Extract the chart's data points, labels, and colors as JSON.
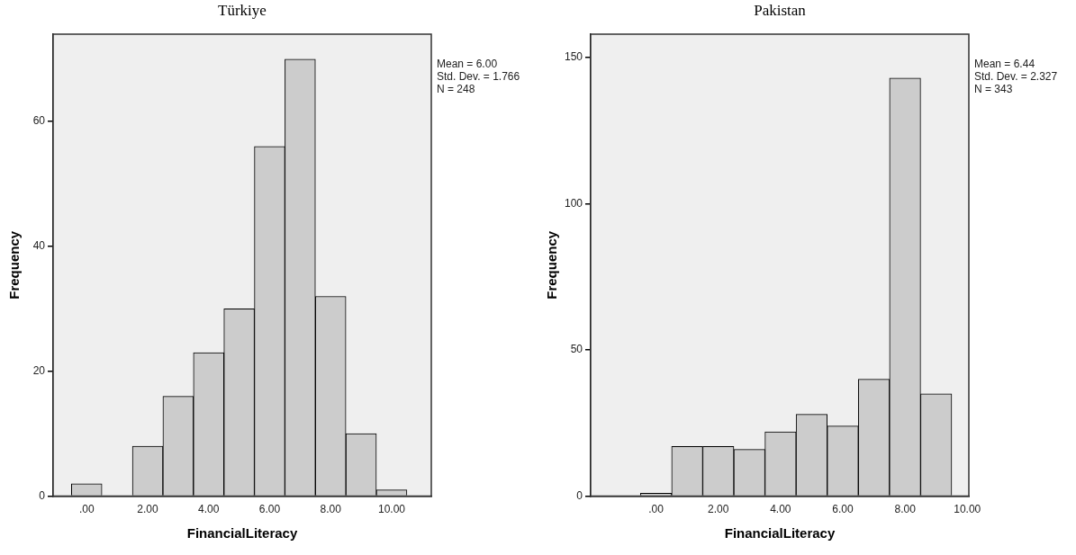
{
  "chart_data": [
    {
      "type": "histogram",
      "title": "Türkiye",
      "xlabel": "FinancialLiteracy",
      "ylabel": "Frequency",
      "color": "#cccccc",
      "grid": false,
      "legend": false,
      "bins": [
        -0.5,
        0.5,
        1.5,
        2.5,
        3.5,
        4.5,
        5.5,
        6.5,
        7.5,
        8.5,
        9.5,
        10.5
      ],
      "values": [
        2,
        0,
        8,
        16,
        23,
        30,
        56,
        70,
        32,
        10,
        1
      ],
      "xlim": [
        -1.1,
        11.3
      ],
      "ylim": [
        0,
        74
      ],
      "xticks": [
        {
          "value": 0,
          "label": ".00"
        },
        {
          "value": 2,
          "label": "2.00"
        },
        {
          "value": 4,
          "label": "4.00"
        },
        {
          "value": 6,
          "label": "6.00"
        },
        {
          "value": 8,
          "label": "8.00"
        },
        {
          "value": 10,
          "label": "10.00"
        }
      ],
      "yticks": [
        0,
        20,
        40,
        60
      ],
      "annotations": [
        "Mean = 6.00",
        "Std. Dev. = 1.766",
        "N = 248"
      ]
    },
    {
      "type": "histogram",
      "title": "Pakistan",
      "xlabel": "FinancialLiteracy",
      "ylabel": "Frequency",
      "color": "#cccccc",
      "grid": false,
      "legend": false,
      "bins": [
        -0.5,
        0.5,
        1.5,
        2.5,
        3.5,
        4.5,
        5.5,
        6.5,
        7.5,
        8.5,
        9.5
      ],
      "values": [
        1,
        17,
        17,
        16,
        22,
        28,
        24,
        40,
        143,
        35
      ],
      "xlim": [
        -2.1,
        10.05
      ],
      "ylim": [
        0,
        158
      ],
      "xticks": [
        {
          "value": 0,
          "label": ".00"
        },
        {
          "value": 2,
          "label": "2.00"
        },
        {
          "value": 4,
          "label": "4.00"
        },
        {
          "value": 6,
          "label": "6.00"
        },
        {
          "value": 8,
          "label": "8.00"
        },
        {
          "value": 10,
          "label": "10.00"
        }
      ],
      "yticks": [
        0,
        50,
        100,
        150
      ],
      "annotations": [
        "Mean = 6.44",
        "Std. Dev. = 2.327",
        "N = 343"
      ]
    }
  ]
}
